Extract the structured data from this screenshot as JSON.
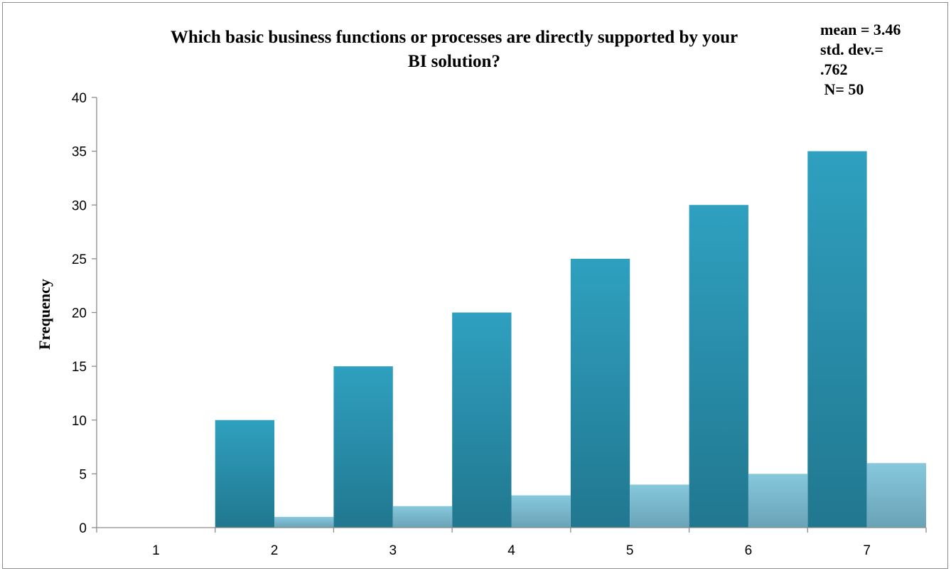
{
  "chart_data": {
    "type": "bar",
    "title_lines": [
      "Which basic business functions or processes are directly supported by your",
      "BI solution?"
    ],
    "stats_lines": [
      "mean = 3.46",
      "std. dev.=",
      ".762",
      " N= 50"
    ],
    "xlabel": "",
    "ylabel": "Frequency",
    "categories": [
      "1",
      "2",
      "3",
      "4",
      "5",
      "6",
      "7"
    ],
    "ylim": [
      0,
      40
    ],
    "yticks": [
      0,
      5,
      10,
      15,
      20,
      25,
      30,
      35,
      40
    ],
    "grid": false,
    "series": [
      {
        "values": [
          0,
          10,
          15,
          20,
          25,
          30,
          35
        ],
        "color": "#2b93b1"
      },
      {
        "values": [
          0,
          1,
          2,
          3,
          4,
          5,
          6
        ],
        "color": "#7fc1d7"
      }
    ]
  }
}
